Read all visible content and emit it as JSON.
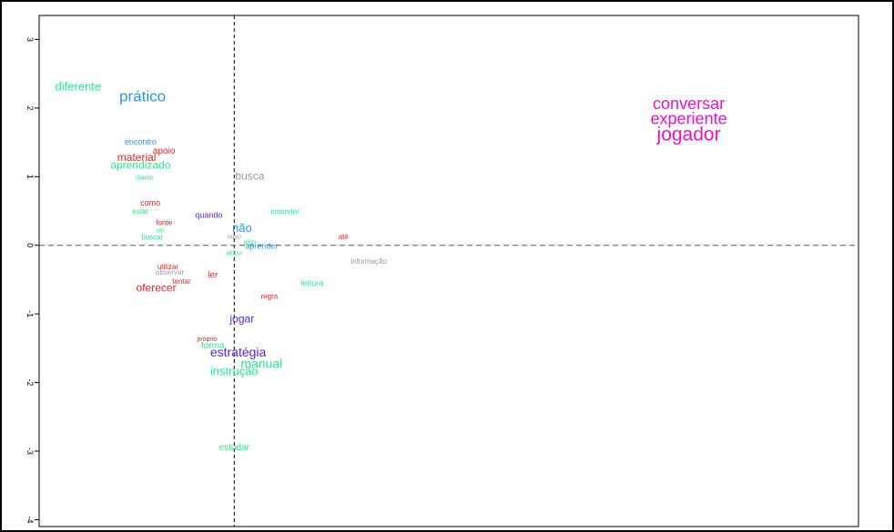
{
  "chart_data": {
    "type": "scatter",
    "title": "",
    "xlabel": "",
    "ylabel": "",
    "xlim": [
      -1.0,
      3.2
    ],
    "ylim": [
      -4.1,
      3.35
    ],
    "y_ticks": [
      3,
      2,
      1,
      0,
      -1,
      -2,
      -3,
      -4
    ],
    "grid": false,
    "reference_lines": {
      "x": 0,
      "y": 0,
      "style": "dashed"
    },
    "points": [
      {
        "label": "diferente",
        "x": -0.8,
        "y": 2.3,
        "size": 13,
        "color": "#22ee88"
      },
      {
        "label": "prático",
        "x": -0.47,
        "y": 2.16,
        "size": 17,
        "color": "#2299ee"
      },
      {
        "label": "conversar",
        "x": 2.33,
        "y": 2.05,
        "size": 18,
        "color": "#ee11cc"
      },
      {
        "label": "experiente",
        "x": 2.33,
        "y": 1.83,
        "size": 18,
        "color": "#ee11cc"
      },
      {
        "label": "jogador",
        "x": 2.33,
        "y": 1.6,
        "size": 21,
        "color": "#ee11cc"
      },
      {
        "label": "encontro",
        "x": -0.48,
        "y": 1.5,
        "size": 9,
        "color": "#2299ee"
      },
      {
        "label": "apoio",
        "x": -0.36,
        "y": 1.37,
        "size": 10,
        "color": "#ee2222"
      },
      {
        "label": "material",
        "x": -0.5,
        "y": 1.27,
        "size": 12,
        "color": "#ee2222"
      },
      {
        "label": "aprendizado",
        "x": -0.48,
        "y": 1.16,
        "size": 12,
        "color": "#22ee88"
      },
      {
        "label": "diante",
        "x": -0.46,
        "y": 0.98,
        "size": 7,
        "color": "#22ee88"
      },
      {
        "label": "busca",
        "x": 0.08,
        "y": 1.0,
        "size": 12,
        "color": "#999999"
      },
      {
        "label": "como",
        "x": -0.43,
        "y": 0.61,
        "size": 9,
        "color": "#ee2222"
      },
      {
        "label": "estar",
        "x": -0.48,
        "y": 0.49,
        "size": 8,
        "color": "#22ee88"
      },
      {
        "label": "entender",
        "x": 0.26,
        "y": 0.48,
        "size": 8,
        "color": "#22ee88"
      },
      {
        "label": "quando",
        "x": -0.13,
        "y": 0.43,
        "size": 9,
        "color": "#5522ee"
      },
      {
        "label": "fonte",
        "x": -0.36,
        "y": 0.32,
        "size": 8,
        "color": "#ee2222"
      },
      {
        "label": "não",
        "x": 0.04,
        "y": 0.24,
        "size": 13,
        "color": "#2299ee"
      },
      {
        "label": "ao",
        "x": -0.38,
        "y": 0.21,
        "size": 7,
        "color": "#22ee88"
      },
      {
        "label": "buscar",
        "x": -0.42,
        "y": 0.11,
        "size": 8,
        "color": "#22ee88"
      },
      {
        "label": "novo",
        "x": 0.0,
        "y": 0.12,
        "size": 7,
        "color": "#999999"
      },
      {
        "label": "até",
        "x": 0.56,
        "y": 0.12,
        "size": 8,
        "color": "#ee2222"
      },
      {
        "label": "algo",
        "x": 0.08,
        "y": 0.04,
        "size": 7,
        "color": "#22ee88"
      },
      {
        "label": "aprender",
        "x": 0.14,
        "y": -0.02,
        "size": 9,
        "color": "#2299ee"
      },
      {
        "label": "aluno",
        "x": 0.0,
        "y": -0.12,
        "size": 7,
        "color": "#22ee88"
      },
      {
        "label": "informação",
        "x": 0.69,
        "y": -0.24,
        "size": 8,
        "color": "#999999"
      },
      {
        "label": "utilizar",
        "x": -0.34,
        "y": -0.32,
        "size": 8,
        "color": "#ee2222"
      },
      {
        "label": "observar",
        "x": -0.33,
        "y": -0.4,
        "size": 8,
        "color": "#999999"
      },
      {
        "label": "ler",
        "x": -0.11,
        "y": -0.44,
        "size": 10,
        "color": "#ee2222"
      },
      {
        "label": "tentar",
        "x": -0.27,
        "y": -0.53,
        "size": 8,
        "color": "#ee2222"
      },
      {
        "label": "leitura",
        "x": 0.4,
        "y": -0.56,
        "size": 9,
        "color": "#22ee88"
      },
      {
        "label": "oferecer",
        "x": -0.4,
        "y": -0.63,
        "size": 12,
        "color": "#ee2222"
      },
      {
        "label": "regra",
        "x": 0.18,
        "y": -0.75,
        "size": 8,
        "color": "#ee2222"
      },
      {
        "label": "jogar",
        "x": 0.04,
        "y": -1.08,
        "size": 12,
        "color": "#5522ee"
      },
      {
        "label": "próprio",
        "x": -0.14,
        "y": -1.37,
        "size": 7,
        "color": "#ee2222"
      },
      {
        "label": "forma",
        "x": -0.11,
        "y": -1.47,
        "size": 10,
        "color": "#22ee88"
      },
      {
        "label": "estratégia",
        "x": 0.02,
        "y": -1.57,
        "size": 14,
        "color": "#5522ee"
      },
      {
        "label": "manual",
        "x": 0.14,
        "y": -1.74,
        "size": 14,
        "color": "#22ee88"
      },
      {
        "label": "instrução",
        "x": 0.0,
        "y": -1.85,
        "size": 13,
        "color": "#22ee88"
      },
      {
        "label": "estudar",
        "x": 0.0,
        "y": -2.95,
        "size": 10,
        "color": "#22ee88"
      }
    ]
  }
}
